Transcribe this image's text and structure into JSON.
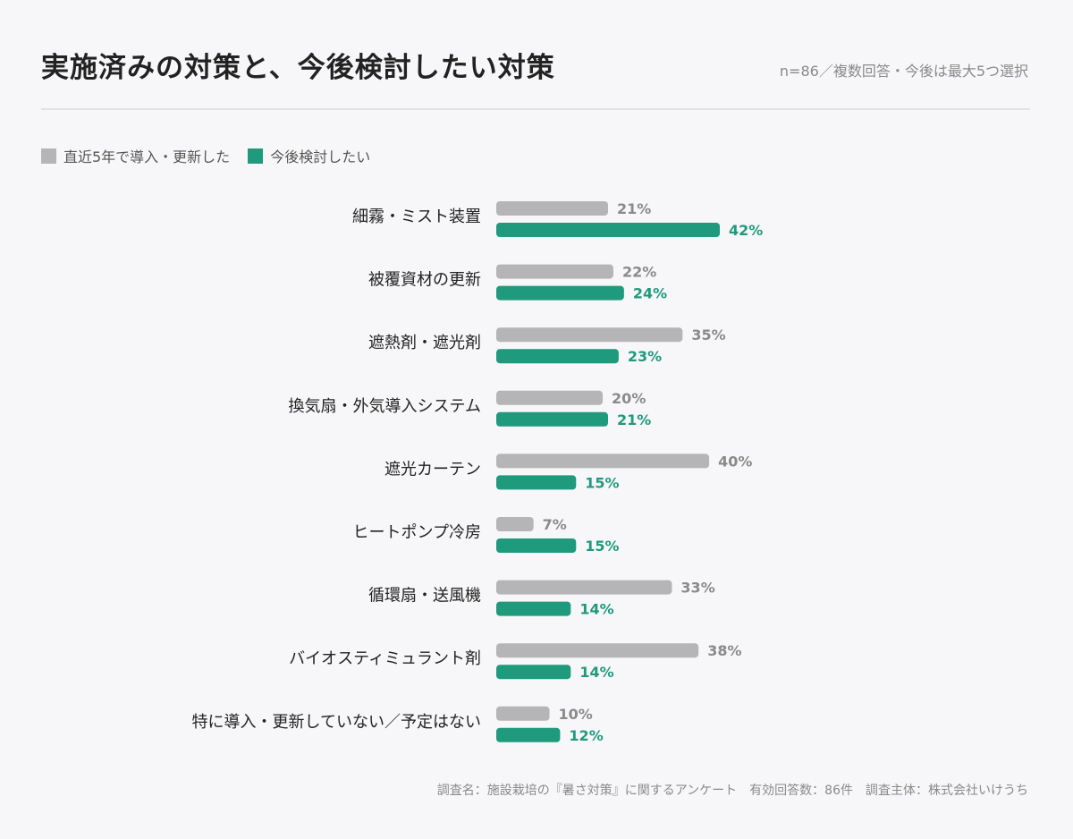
{
  "header": {
    "title": "実施済みの対策と、今後検討したい対策",
    "subtitle": "n=86／複数回答・今後は最大5つ選択"
  },
  "footer": {
    "text": "調査名：施設栽培の『暑さ対策』に関するアンケート　有効回答数：86件　調査主体：株式会社いけうち"
  },
  "colors": {
    "past": "#b5b5b8",
    "future": "#1f9a7c",
    "past_label": "#8a8a8a",
    "future_label": "#1f9a7c"
  },
  "chart_data": {
    "type": "bar",
    "orientation": "horizontal",
    "legend_placement": "top-left",
    "grid": false,
    "categories": [
      "細霧・ミスト装置",
      "被覆資材の更新",
      "遮熱剤・遮光剤",
      "換気扇・外気導入システム",
      "遮光カーテン",
      "ヒートポンプ冷房",
      "循環扇・送風機",
      "バイオスティミュラント剤",
      "特に導入・更新していない／予定はない"
    ],
    "series": [
      {
        "name": "直近5年で導入・更新した",
        "values": [
          21,
          22,
          35,
          20,
          40,
          7,
          33,
          38,
          10
        ],
        "labels": [
          "21%",
          "22%",
          "35%",
          "20%",
          "40%",
          "7%",
          "33%",
          "38%",
          "10%"
        ]
      },
      {
        "name": "今後検討したい",
        "values": [
          42,
          24,
          23,
          21,
          15,
          15,
          14,
          14,
          12
        ],
        "labels": [
          "42%",
          "24%",
          "23%",
          "21%",
          "15%",
          "15%",
          "14%",
          "14%",
          "12%"
        ]
      }
    ],
    "xlim": [
      0,
      42
    ]
  }
}
